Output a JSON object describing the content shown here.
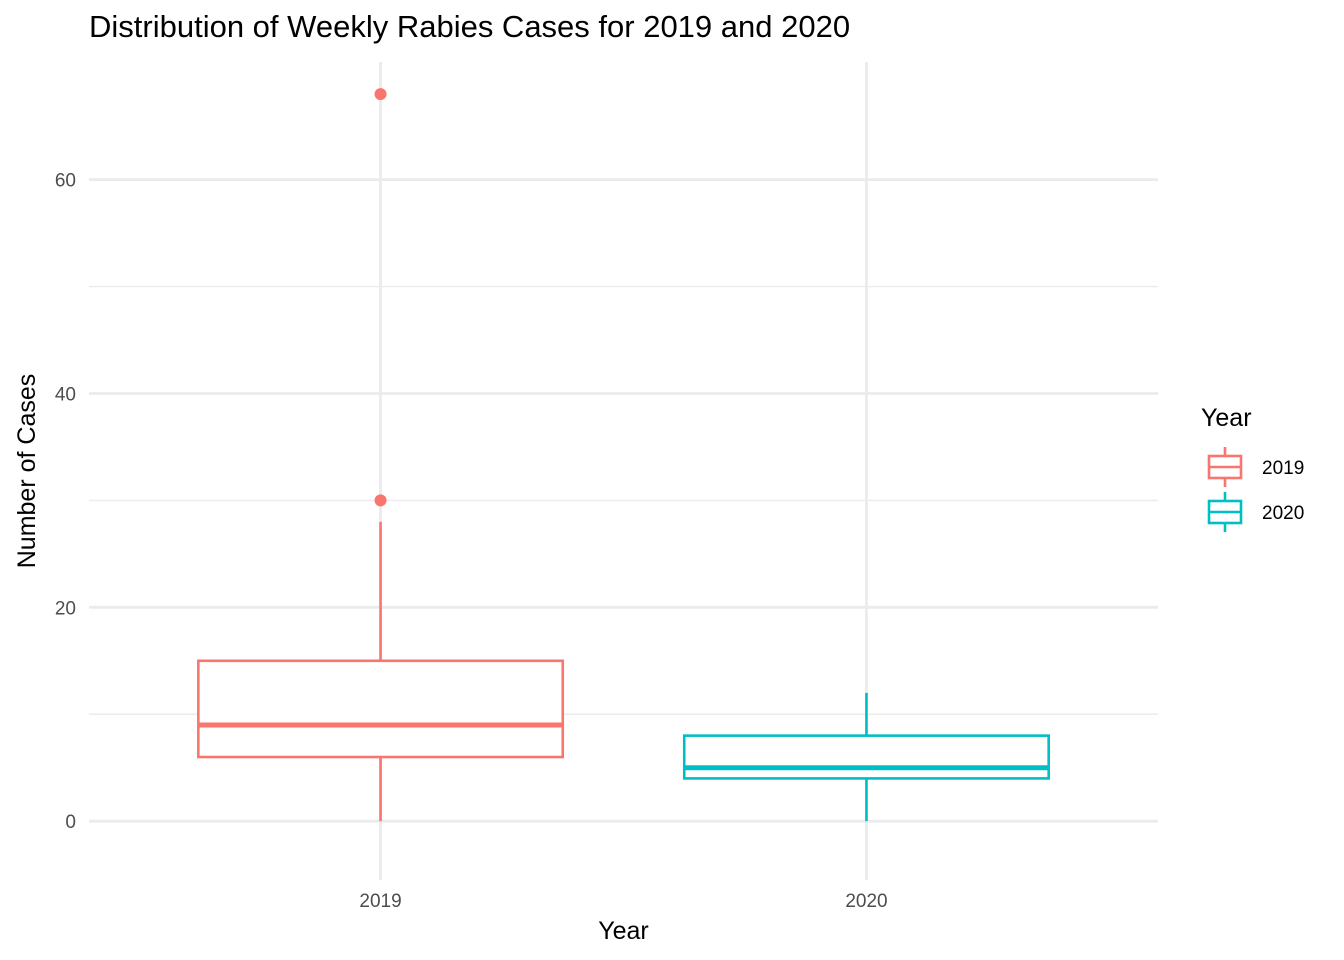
{
  "chart_data": {
    "type": "boxplot",
    "title": "Distribution of Weekly Rabies Cases for 2019 and 2020",
    "xlabel": "Year",
    "ylabel": "Number of Cases",
    "ylim": [
      -5.5,
      71
    ],
    "yticks": [
      0,
      20,
      40,
      60
    ],
    "categories": [
      "2019",
      "2020"
    ],
    "series": [
      {
        "name": "2019",
        "color": "#F8766D",
        "min": 0,
        "q1": 6,
        "median": 9,
        "q3": 15,
        "max": 28,
        "outliers": [
          30,
          68
        ]
      },
      {
        "name": "2020",
        "color": "#00BFC4",
        "min": 0,
        "q1": 4,
        "median": 5,
        "q3": 8,
        "max": 12,
        "outliers": []
      }
    ],
    "legend": {
      "title": "Year",
      "position": "right"
    },
    "grid": true
  }
}
